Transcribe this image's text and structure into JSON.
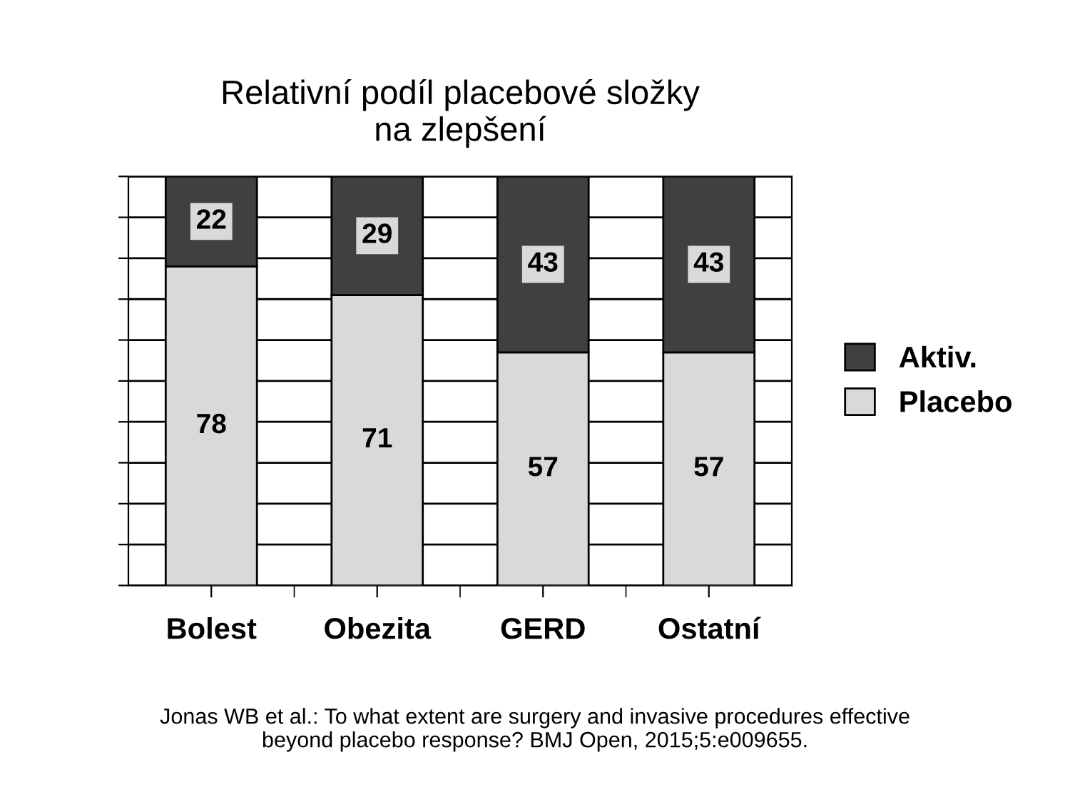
{
  "chart_data": {
    "type": "bar",
    "title": "Relativní podíl placebové složky\nna zlepšení",
    "categories": [
      "Bolest",
      "Obezita",
      "GERD",
      "Ostatní"
    ],
    "stacked": true,
    "series": [
      {
        "name": "Placebo",
        "color": "#d9d9d9",
        "values": [
          78,
          71,
          57,
          57
        ]
      },
      {
        "name": "Aktiv.",
        "color": "#404040",
        "values": [
          22,
          29,
          43,
          43
        ]
      }
    ],
    "ylim": [
      0,
      100
    ],
    "yticks": [
      {
        "value": 0,
        "label": null
      },
      {
        "value": 10,
        "label": null
      },
      {
        "value": 20,
        "label": null
      },
      {
        "value": 30,
        "label": null
      },
      {
        "value": 40,
        "label": null
      },
      {
        "value": 50,
        "label": null
      },
      {
        "value": 60,
        "label": null
      },
      {
        "value": 70,
        "label": null
      },
      {
        "value": 80,
        "label": null
      },
      {
        "value": 90,
        "label": null
      },
      {
        "value": 100,
        "label": null
      }
    ],
    "tick_labels": "x",
    "grid": "y",
    "legend": "right",
    "data_labels": true,
    "annotations": [
      "Jonas WB et al.: To what extent are surgery and invasive procedures effective\nbeyond placebo response? BMJ Open, 2015;5:e009655."
    ]
  }
}
